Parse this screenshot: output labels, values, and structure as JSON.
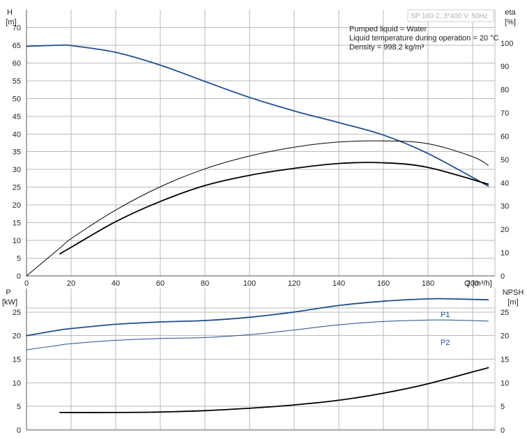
{
  "chart_data": [
    {
      "type": "line",
      "panel": "top",
      "title": "SP 160-2, 3*400 V, 50Hz",
      "annotations": [
        "Pumped liquid = Water",
        "Liquid temperature during operation = 20 °C",
        "Density = 998.2 kg/m³"
      ],
      "xlabel": "Q [m³/h]",
      "ylabel_left": [
        "H",
        "[m]"
      ],
      "ylabel_right": [
        "eta",
        "[%]"
      ],
      "xlim": [
        0,
        210
      ],
      "ylim_left": [
        0,
        75
      ],
      "ylim_right": [
        0,
        114.3
      ],
      "x_ticks": [
        0,
        20,
        40,
        60,
        80,
        100,
        120,
        140,
        160,
        180,
        200
      ],
      "y_left_ticks": [
        0,
        5,
        10,
        15,
        20,
        25,
        30,
        35,
        40,
        45,
        50,
        55,
        60,
        65,
        70
      ],
      "y_right_ticks": [
        0,
        10,
        20,
        30,
        40,
        50,
        60,
        70,
        80,
        90,
        100
      ],
      "grid": true,
      "series": [
        {
          "axis": "left",
          "color": "#1f4e8c",
          "width": 1.8,
          "x": [
            0,
            15,
            20,
            40,
            60,
            80,
            100,
            120,
            140,
            160,
            180,
            207
          ],
          "y": [
            64.7,
            65.0,
            64.9,
            63.0,
            59.4,
            54.8,
            50.3,
            46.5,
            43.2,
            39.7,
            34.5,
            25.3
          ]
        },
        {
          "axis": "right",
          "color": "#000000",
          "width": 1.0,
          "x": [
            0,
            15,
            20,
            40,
            60,
            80,
            100,
            120,
            140,
            160,
            180,
            200,
            207
          ],
          "y": [
            0,
            12,
            16,
            28.3,
            38.3,
            46.0,
            51.5,
            55.3,
            57.5,
            58.0,
            56.8,
            51.2,
            47.5
          ]
        },
        {
          "axis": "right",
          "color": "#000000",
          "width": 1.8,
          "x": [
            15,
            20,
            40,
            60,
            80,
            100,
            120,
            140,
            160,
            180,
            207
          ],
          "y": [
            9.5,
            12.3,
            23.3,
            32.0,
            38.8,
            43.2,
            46.2,
            48.3,
            48.6,
            46.6,
            39.4
          ]
        }
      ]
    },
    {
      "type": "line",
      "panel": "bottom",
      "xlim": [
        0,
        210
      ],
      "ylim_left": [
        0,
        30
      ],
      "ylim_right": [
        0,
        30
      ],
      "ylabel_left": [
        "P",
        "[kW]"
      ],
      "ylabel_right": [
        "NPSH",
        "[m]"
      ],
      "y_left_ticks": [
        0,
        5,
        10,
        15,
        20,
        25
      ],
      "y_right_ticks": [
        0,
        5,
        10,
        15,
        20,
        25
      ],
      "grid": true,
      "series": [
        {
          "name": "P1",
          "axis": "left",
          "color": "#1f4e8c",
          "width": 1.8,
          "x": [
            0,
            15,
            20,
            40,
            60,
            80,
            100,
            120,
            140,
            160,
            180,
            190,
            207
          ],
          "y": [
            20.0,
            21.2,
            21.5,
            22.4,
            22.9,
            23.2,
            23.9,
            25.0,
            26.4,
            27.3,
            27.8,
            27.8,
            27.6
          ]
        },
        {
          "name": "P2",
          "axis": "left",
          "color": "#1f4e8c",
          "width": 1.0,
          "x": [
            0,
            15,
            20,
            40,
            60,
            80,
            100,
            120,
            140,
            160,
            180,
            190,
            207
          ],
          "y": [
            17.0,
            18.0,
            18.3,
            19.0,
            19.4,
            19.6,
            20.2,
            21.2,
            22.3,
            23.0,
            23.3,
            23.3,
            23.1
          ]
        },
        {
          "axis": "right",
          "color": "#000000",
          "width": 1.8,
          "x": [
            15,
            40,
            60,
            80,
            100,
            120,
            140,
            160,
            180,
            207
          ],
          "y": [
            3.7,
            3.7,
            3.8,
            4.1,
            4.6,
            5.3,
            6.3,
            7.8,
            9.8,
            13.2
          ]
        }
      ]
    }
  ]
}
